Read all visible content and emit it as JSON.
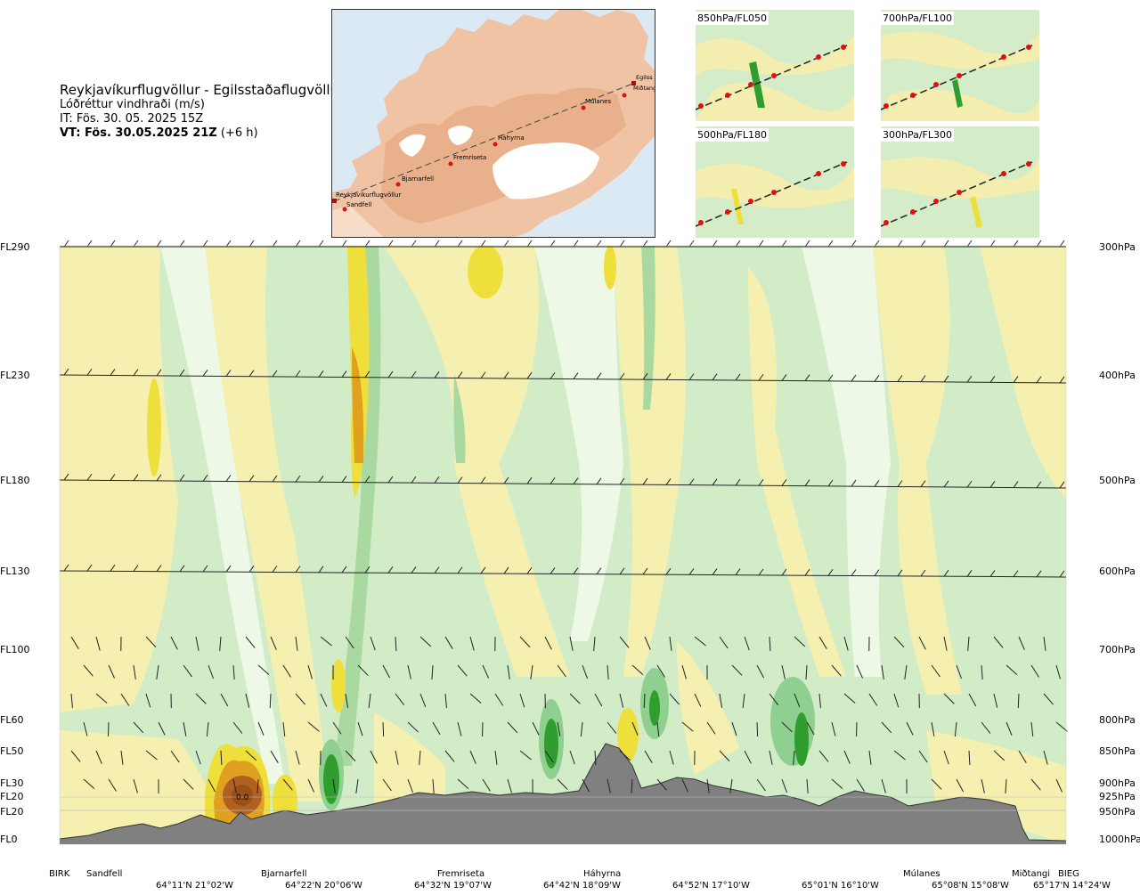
{
  "header": {
    "route": "Reykjavíkurflugvöllur - Egilsstaðaflugvöllur",
    "parameter": "Lóðréttur vindhraði (m/s)",
    "it": "IT: Fös. 30. 05. 2025 15Z",
    "vt_main": "VT: Fös. 30.05.2025 21Z",
    "vt_offset": " (+6 h)"
  },
  "map": {
    "waypoints": [
      "Reykjavíkurflugvöllur",
      "Sandfell",
      "Bjarnarfell",
      "Fremriseta",
      "Háhyrna",
      "Múlanes",
      "Egilss",
      "Miðtangi"
    ]
  },
  "panels": [
    {
      "label": "850hPa/FL050"
    },
    {
      "label": "700hPa/FL100"
    },
    {
      "label": "500hPa/FL180"
    },
    {
      "label": "300hPa/FL300"
    }
  ],
  "chart_data": {
    "type": "heatmap",
    "title": "Lóðréttur vindhraði (m/s)",
    "levels_left": [
      "FL290",
      "FL230",
      "FL180",
      "FL130",
      "FL100",
      "FL60",
      "FL50",
      "FL30",
      "FL20",
      "FL20",
      "FL0"
    ],
    "levels_right": [
      "300hPa",
      "400hPa",
      "500hPa",
      "600hPa",
      "700hPa",
      "800hPa",
      "850hPa",
      "900hPa",
      "925hPa",
      "950hPa",
      "1000hPa"
    ],
    "pressure_hpa": [
      300,
      400,
      500,
      600,
      700,
      800,
      850,
      900,
      925,
      950,
      1000
    ],
    "waypoints": [
      "BIRK",
      "Sandfell",
      "Bjarnarfell",
      "Fremriseta",
      "Háhyrna",
      "Múlanes",
      "Miðtangi",
      "BIEG"
    ],
    "coordinates": [
      "64°11'N 21°02'W",
      "64°22'N 20°06'W",
      "64°32'N 19°07'W",
      "64°42'N 18°09'W",
      "64°52'N 17°10'W",
      "65°01'N 16°10'W",
      "65°08'N 15°08'W",
      "65°17'N 14°24'W"
    ],
    "value_label": "0.0",
    "colors": {
      "strong_down": "#2f9e2f",
      "moderate_down": "#8fcf8f",
      "weak_down": "#c8e8c8",
      "near_zero": "#eef8e6",
      "weak_up": "#f6f0b0",
      "moderate_up": "#eedf3a",
      "strong_up": "#e0a020",
      "very_strong_up": "#9a5018",
      "terrain": "#808080"
    }
  }
}
